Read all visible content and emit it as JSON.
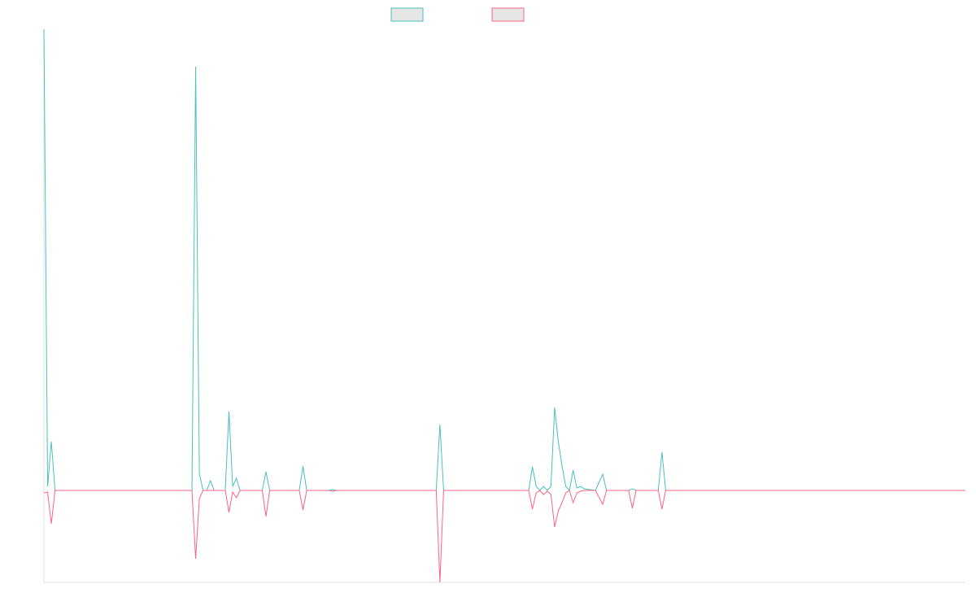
{
  "chart_data": {
    "type": "line",
    "x": [
      0,
      1,
      2,
      3,
      40,
      41,
      42,
      43,
      44,
      45,
      46,
      49,
      50,
      51,
      52,
      53,
      59,
      60,
      61,
      69,
      70,
      71,
      77,
      78,
      79,
      106,
      107,
      108,
      131,
      132,
      133,
      134,
      135,
      136,
      137,
      138,
      139,
      140,
      141,
      142,
      143,
      144,
      145,
      146,
      149,
      151,
      152,
      158,
      159,
      160,
      166,
      167,
      168,
      249
    ],
    "series": [
      {
        "color": "#4bc0c0",
        "values": [
          567,
          5,
          60,
          0,
          0,
          521,
          21,
          0,
          0,
          12,
          0,
          0,
          97,
          5,
          15,
          0,
          0,
          23,
          0,
          0,
          30,
          0,
          0,
          1,
          0,
          0,
          81,
          0,
          0,
          29,
          5,
          0,
          5,
          0,
          5,
          102,
          60,
          30,
          5,
          0,
          25,
          3,
          5,
          2,
          0,
          20,
          0,
          0,
          2,
          0,
          0,
          47,
          0,
          0
        ]
      },
      {
        "color": "#ff6384",
        "values": [
          -3,
          -2,
          -41,
          0,
          0,
          -84,
          -10,
          0,
          0,
          0,
          0,
          0,
          -27,
          -2,
          -9,
          0,
          0,
          -32,
          0,
          0,
          -24,
          0,
          0,
          -1,
          0,
          0,
          -113,
          0,
          0,
          -23,
          -3,
          0,
          -5,
          -1,
          -5,
          -45,
          -25,
          -15,
          -3,
          0,
          -15,
          -3,
          -1,
          0,
          0,
          -17,
          0,
          0,
          -22,
          0,
          0,
          -23,
          0,
          0
        ]
      }
    ],
    "xlim": [
      0,
      249
    ],
    "ylim": [
      -113,
      567
    ]
  }
}
